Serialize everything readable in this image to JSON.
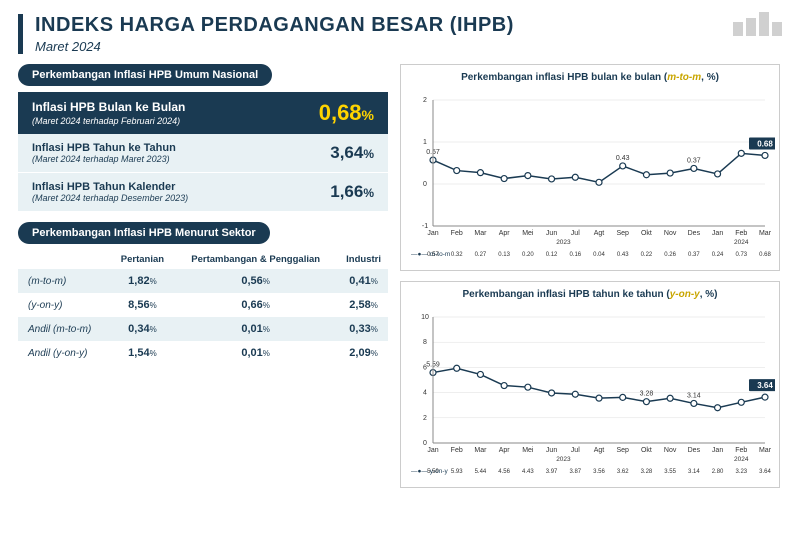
{
  "header": {
    "title": "INDEKS HARGA PERDAGANGAN BESAR (IHPB)",
    "subtitle": "Maret 2024"
  },
  "colors": {
    "dark": "#1a3a52",
    "accent": "#ffd400",
    "light_bg": "#e8f1f4",
    "grid": "#dddddd",
    "axis": "#888888",
    "point_fill": "#ffffff",
    "text": "#333333"
  },
  "summary": {
    "section_title": "Perkembangan Inflasi HPB Umum Nasional",
    "main": {
      "title": "Inflasi HPB Bulan ke Bulan",
      "sub": "(Maret 2024 terhadap Februari 2024)",
      "value": "0,68",
      "pct": "%"
    },
    "rows": [
      {
        "title": "Inflasi HPB Tahun ke Tahun",
        "sub": "(Maret 2024 terhadap Maret 2023)",
        "value": "3,64",
        "pct": "%"
      },
      {
        "title": "Inflasi HPB Tahun Kalender",
        "sub": "(Maret 2024 terhadap Desember 2023)",
        "value": "1,66",
        "pct": "%"
      }
    ]
  },
  "sector": {
    "section_title": "Perkembangan Inflasi HPB Menurut Sektor",
    "columns": [
      "",
      "Pertanian",
      "Pertambangan & Penggalian",
      "Industri"
    ],
    "rows": [
      {
        "label": "(m-to-m)",
        "vals": [
          "1,82",
          "0,56",
          "0,41"
        ],
        "hl": true
      },
      {
        "label": "(y-on-y)",
        "vals": [
          "8,56",
          "0,66",
          "2,58"
        ],
        "hl": false
      },
      {
        "label": "Andil (m-to-m)",
        "vals": [
          "0,34",
          "0,01",
          "0,33"
        ],
        "hl": true
      },
      {
        "label": "Andil (y-on-y)",
        "vals": [
          "1,54",
          "0,01",
          "2,09"
        ],
        "hl": false
      }
    ]
  },
  "chart_mtm": {
    "title_prefix": "Perkembangan inflasi HPB bulan ke bulan (",
    "title_em": "m-to-m",
    "title_suffix": ", %)",
    "ylim": [
      -1,
      2
    ],
    "yticks": [
      -1,
      0,
      1,
      2
    ],
    "months": [
      "Jan",
      "Feb",
      "Mar",
      "Apr",
      "Mei",
      "Jun",
      "Jul",
      "Agt",
      "Sep",
      "Okt",
      "Nov",
      "Des",
      "Jan",
      "Feb",
      "Mar"
    ],
    "year_groups": [
      {
        "label": "2023",
        "span": [
          0,
          11
        ]
      },
      {
        "label": "2024",
        "span": [
          12,
          14
        ]
      }
    ],
    "values": [
      0.57,
      0.32,
      0.27,
      0.13,
      0.2,
      0.12,
      0.16,
      0.04,
      0.43,
      0.22,
      0.26,
      0.37,
      0.24,
      0.73,
      0.68
    ],
    "point_labels": [
      {
        "i": 0,
        "v": "0.57"
      },
      {
        "i": 8,
        "v": "0.43"
      },
      {
        "i": 11,
        "v": "0.37"
      }
    ],
    "end_label": "0.68",
    "legend": "m-to-m",
    "line_color": "#1a3a52",
    "line_width": 1.5,
    "marker_r": 3
  },
  "chart_yoy": {
    "title_prefix": "Perkembangan inflasi HPB tahun ke tahun (",
    "title_em": "y-on-y",
    "title_suffix": ", %)",
    "ylim": [
      0,
      10
    ],
    "yticks": [
      0,
      2,
      4,
      6,
      8,
      10
    ],
    "months": [
      "Jan",
      "Feb",
      "Mar",
      "Apr",
      "Mei",
      "Jun",
      "Jul",
      "Agt",
      "Sep",
      "Okt",
      "Nov",
      "Des",
      "Jan",
      "Feb",
      "Mar"
    ],
    "year_groups": [
      {
        "label": "2023",
        "span": [
          0,
          11
        ]
      },
      {
        "label": "2024",
        "span": [
          12,
          14
        ]
      }
    ],
    "values": [
      5.59,
      5.93,
      5.44,
      4.56,
      4.43,
      3.97,
      3.87,
      3.56,
      3.62,
      3.28,
      3.55,
      3.14,
      2.8,
      3.23,
      3.64
    ],
    "point_labels": [
      {
        "i": 0,
        "v": "5.59"
      },
      {
        "i": 9,
        "v": "3.28"
      },
      {
        "i": 11,
        "v": "3.14"
      }
    ],
    "end_label": "3.64",
    "legend": "y-on-y",
    "line_color": "#1a3a52",
    "line_width": 1.5,
    "marker_r": 3
  }
}
